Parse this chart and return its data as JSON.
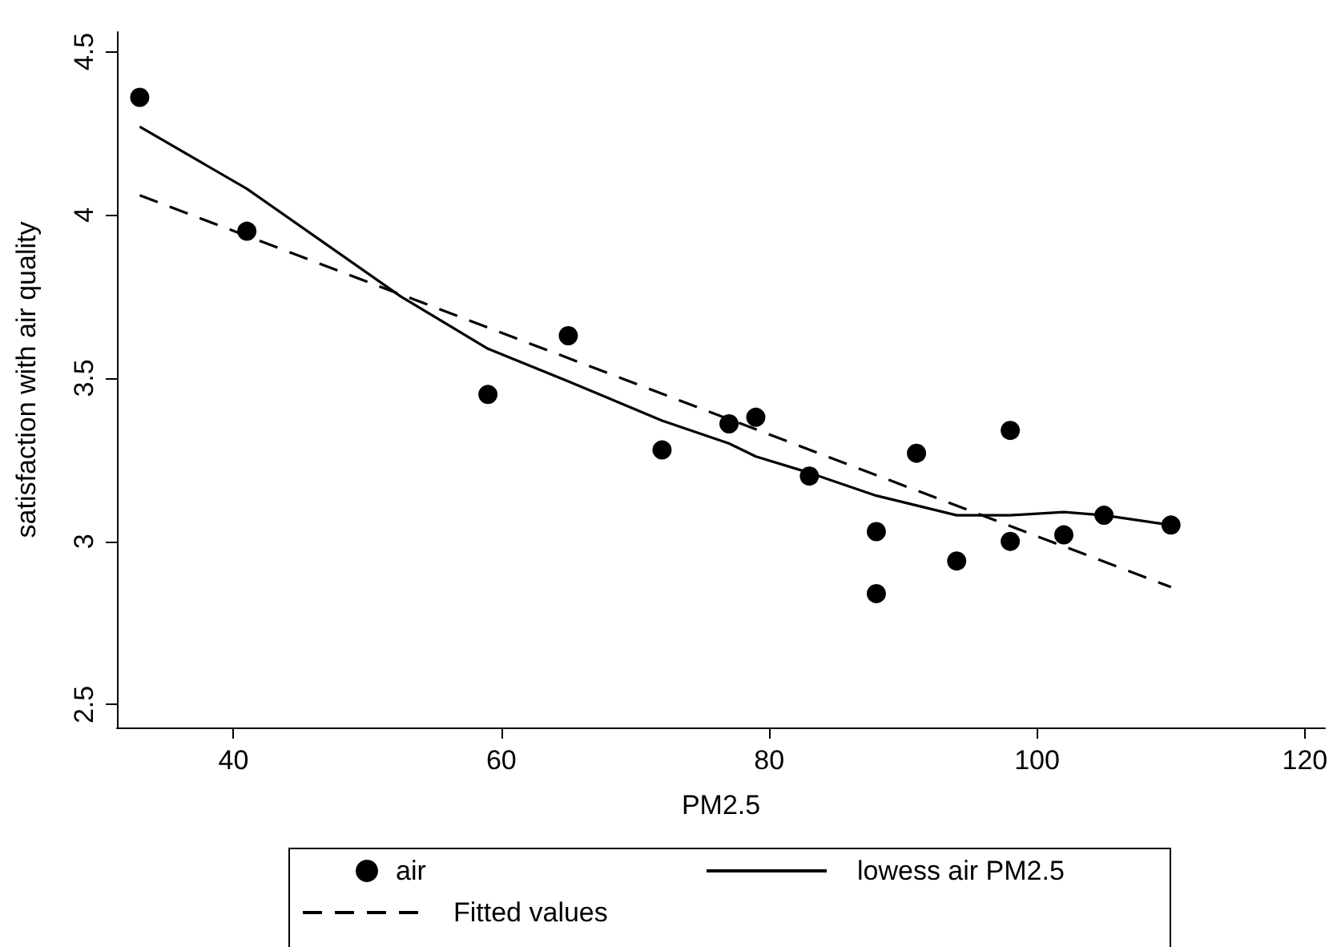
{
  "chart_data": {
    "type": "scatter",
    "xlabel": "PM2.5",
    "ylabel": "satisfaction with air quality",
    "xlim": [
      31.3,
      121.5
    ],
    "xticks": [
      40,
      60,
      80,
      100,
      120
    ],
    "ylim": [
      2.43,
      4.56
    ],
    "yticks": [
      2.5,
      3,
      3.5,
      4,
      4.5
    ],
    "grid": false,
    "legend": "bottom",
    "series": [
      {
        "name": "air",
        "marker": "circle",
        "color": "#000000",
        "x": [
          33,
          41,
          59,
          65,
          72,
          77,
          79,
          83,
          88,
          88,
          91,
          94,
          98,
          98,
          102,
          105,
          110
        ],
        "values": [
          4.36,
          3.95,
          3.45,
          3.63,
          3.28,
          3.36,
          3.38,
          3.2,
          3.03,
          2.84,
          3.27,
          2.94,
          3.34,
          3.0,
          3.02,
          3.08,
          3.05
        ]
      },
      {
        "name": "lowess air PM2.5",
        "type": "line",
        "marker": "none",
        "line_style": "solid",
        "color": "#000000",
        "x": [
          33,
          41,
          52.5,
          59,
          65,
          72,
          77,
          79,
          83,
          88,
          91,
          94,
          98,
          102,
          105,
          110
        ],
        "values": [
          4.27,
          4.08,
          3.75,
          3.59,
          3.49,
          3.37,
          3.3,
          3.26,
          3.21,
          3.14,
          3.11,
          3.08,
          3.08,
          3.09,
          3.08,
          3.05
        ]
      },
      {
        "name": "Fitted values",
        "type": "line",
        "marker": "none",
        "line_style": "dashed",
        "color": "#000000",
        "x": [
          33,
          110
        ],
        "values": [
          4.06,
          2.86
        ]
      }
    ]
  }
}
